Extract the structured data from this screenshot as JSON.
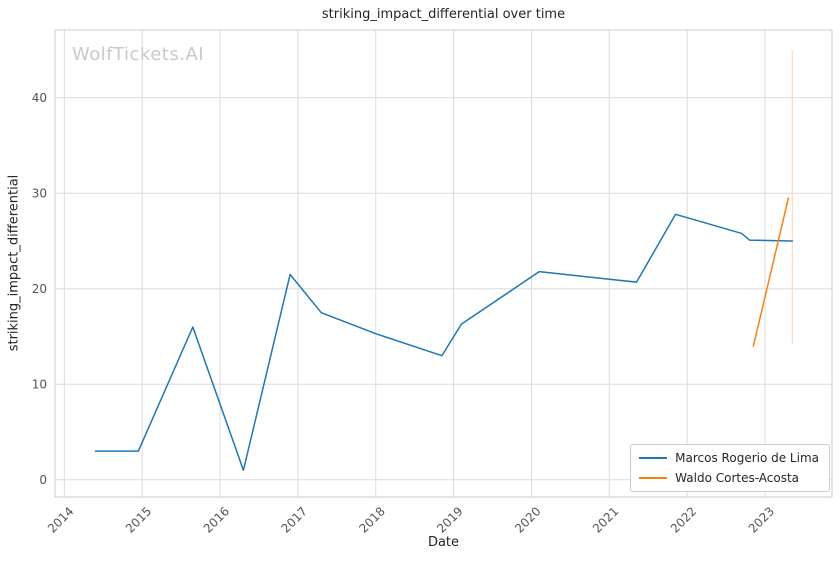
{
  "watermark": "WolfTickets.AI",
  "chart_data": {
    "type": "line",
    "title": "striking_impact_differential over time",
    "xlabel": "Date",
    "ylabel": "striking_impact_differential",
    "xlim": [
      2013.88,
      2023.86
    ],
    "ylim": [
      -1.8,
      47.1
    ],
    "xticks": [
      2014,
      2015,
      2016,
      2017,
      2018,
      2019,
      2020,
      2021,
      2022,
      2023
    ],
    "yticks": [
      0,
      10,
      20,
      30,
      40
    ],
    "grid": true,
    "legend_position": "lower right",
    "series": [
      {
        "name": "Marcos Rogerio de Lima",
        "color": "#1f77b4",
        "points": [
          [
            2014.4,
            3.0
          ],
          [
            2014.95,
            3.0
          ],
          [
            2015.65,
            16.0
          ],
          [
            2016.3,
            1.0
          ],
          [
            2016.9,
            21.5
          ],
          [
            2017.3,
            17.5
          ],
          [
            2018.0,
            15.3
          ],
          [
            2018.85,
            13.0
          ],
          [
            2019.1,
            16.3
          ],
          [
            2020.1,
            21.8
          ],
          [
            2021.0,
            21.0
          ],
          [
            2021.35,
            20.7
          ],
          [
            2021.85,
            27.8
          ],
          [
            2022.7,
            25.8
          ],
          [
            2022.8,
            25.1
          ],
          [
            2023.35,
            25.0
          ]
        ]
      },
      {
        "name": "Waldo Cortes-Acosta",
        "color": "#ff7f0e",
        "points": [
          [
            2022.85,
            14.0
          ],
          [
            2023.3,
            29.5
          ]
        ]
      }
    ],
    "annotations": [
      {
        "type": "vline",
        "x": 2023.35,
        "y1": 14.2,
        "y2": 45.0,
        "color": "#fbd9b8"
      }
    ]
  }
}
